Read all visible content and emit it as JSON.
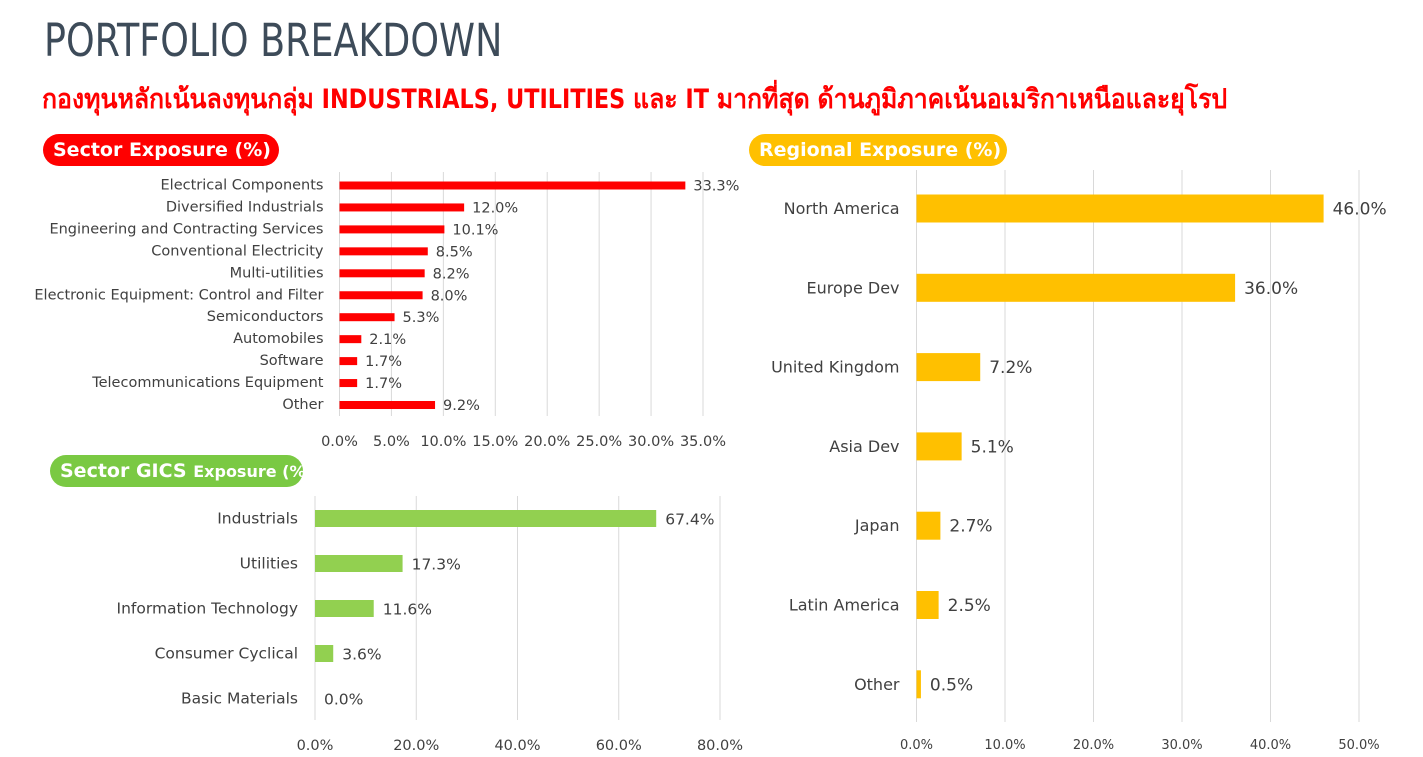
{
  "header": {
    "title": "PORTFOLIO BREAKDOWN",
    "subtitle": "กองทุนหลักเน้นลงทุนกลุ่ม INDUSTRIALS, UTILITIES และ IT มากที่สุด ด้านภูมิภาคเน้นอเมริกาเหนือและยุโรป"
  },
  "badges": {
    "sector": "Sector Exposure (%)",
    "gics_main": "Sector GICS",
    "gics_small": "Exposure (%)",
    "region": "Regional Exposure (%)"
  },
  "colors": {
    "sector": "#ff0000",
    "gics": "#92d050",
    "region": "#ffc000",
    "grid": "#d9d9d9",
    "text": "#404040"
  },
  "chart_data": [
    {
      "id": "sector",
      "type": "bar",
      "orientation": "horizontal",
      "title": "Sector Exposure (%)",
      "categories": [
        "Electrical Components",
        "Diversified Industrials",
        "Engineering and Contracting Services",
        "Conventional Electricity",
        "Multi-utilities",
        "Electronic Equipment: Control and Filter",
        "Semiconductors",
        "Automobiles",
        "Software",
        "Telecommunications Equipment",
        "Other"
      ],
      "values": [
        33.3,
        12.0,
        10.1,
        8.5,
        8.2,
        8.0,
        5.3,
        2.1,
        1.7,
        1.7,
        9.2
      ],
      "value_labels": [
        "33.3%",
        "12.0%",
        "10.1%",
        "8.5%",
        "8.2%",
        "8.0%",
        "5.3%",
        "2.1%",
        "1.7%",
        "1.7%",
        "9.2%"
      ],
      "xlim": [
        0,
        35
      ],
      "xticks": [
        0,
        5,
        10,
        15,
        20,
        25,
        30,
        35
      ],
      "xtick_labels": [
        "0.0%",
        "5.0%",
        "10.0%",
        "15.0%",
        "20.0%",
        "25.0%",
        "30.0%",
        "35.0%"
      ],
      "grid": true
    },
    {
      "id": "gics",
      "type": "bar",
      "orientation": "horizontal",
      "title": "Sector GICS Exposure (%)",
      "categories": [
        "Industrials",
        "Utilities",
        "Information Technology",
        "Consumer Cyclical",
        "Basic Materials"
      ],
      "values": [
        67.4,
        17.3,
        11.6,
        3.6,
        0.0
      ],
      "value_labels": [
        "67.4%",
        "17.3%",
        "11.6%",
        "3.6%",
        "0.0%"
      ],
      "xlim": [
        0,
        80
      ],
      "xticks": [
        0,
        20,
        40,
        60,
        80
      ],
      "xtick_labels": [
        "0.0%",
        "20.0%",
        "40.0%",
        "60.0%",
        "80.0%"
      ],
      "grid": true
    },
    {
      "id": "region",
      "type": "bar",
      "orientation": "horizontal",
      "title": "Regional Exposure (%)",
      "categories": [
        "North America",
        "Europe Dev",
        "United Kingdom",
        "Asia Dev",
        "Japan",
        "Latin America",
        "Other"
      ],
      "values": [
        46.0,
        36.0,
        7.2,
        5.1,
        2.7,
        2.5,
        0.5
      ],
      "value_labels": [
        "46.0%",
        "36.0%",
        "7.2%",
        "5.1%",
        "2.7%",
        "2.5%",
        "0.5%"
      ],
      "xlim": [
        0,
        50
      ],
      "xticks": [
        0,
        10,
        20,
        30,
        40,
        50
      ],
      "xtick_labels": [
        "0.0%",
        "10.0%",
        "20.0%",
        "30.0%",
        "40.0%",
        "50.0%"
      ],
      "grid": true
    }
  ]
}
